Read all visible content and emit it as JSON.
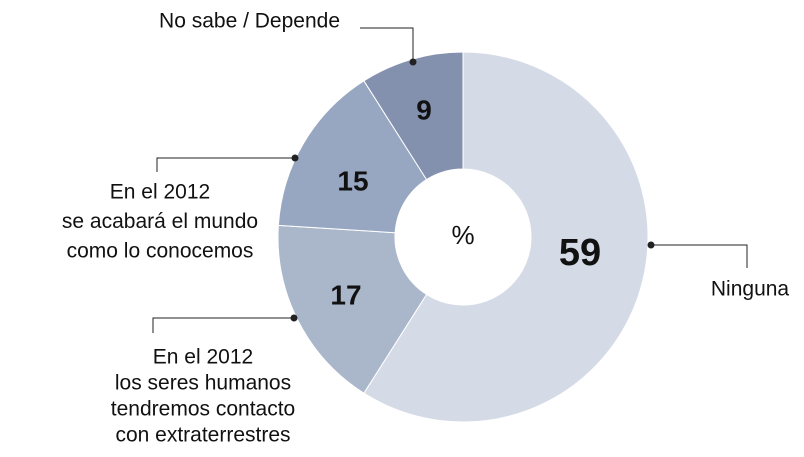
{
  "chart_data": {
    "type": "donut",
    "center_label": "%",
    "categories": [
      [
        "Ninguna"
      ],
      [
        "En el 2012",
        "los seres humanos",
        "tendremos contacto",
        "con extraterrestres"
      ],
      [
        "En  el 2012",
        "se acabará el mundo",
        "como lo conocemos"
      ],
      [
        "No sabe / Depende"
      ]
    ],
    "values": [
      59,
      17,
      15,
      9
    ],
    "colors": [
      "#d5dbe6",
      "#aab7cb",
      "#98a7c1",
      "#8391ae"
    ]
  }
}
